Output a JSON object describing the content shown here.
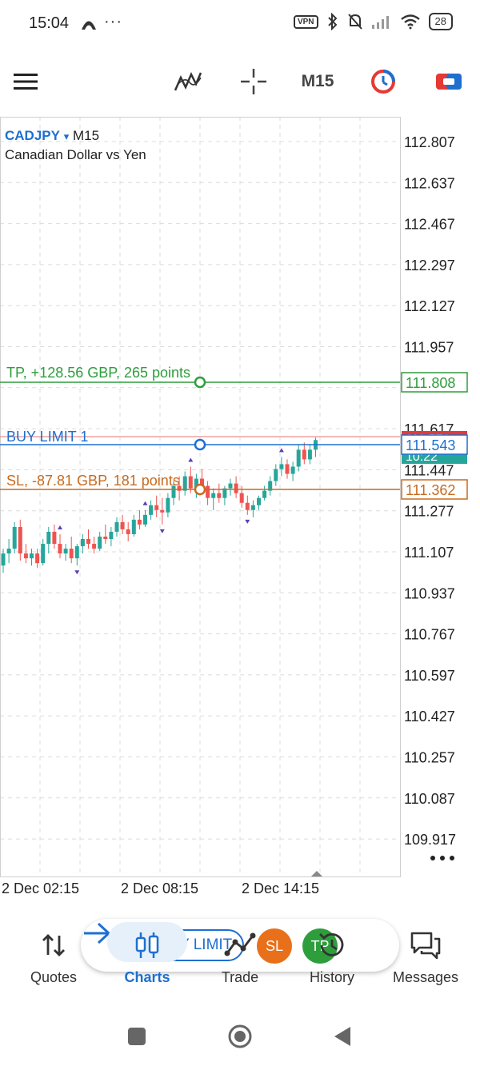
{
  "status_bar": {
    "time": "15:04",
    "dots": "···",
    "vpn": "VPN",
    "battery": "28"
  },
  "toolbar": {
    "menu_icon": "hamburger-icon",
    "indicators_icon": "indicator-icon",
    "crosshair_icon": "crosshair-icon",
    "timeframe": "M15",
    "clock_icon": "one-click-trading-icon",
    "toggle_icon": "toggle-icon"
  },
  "chart": {
    "symbol": "CADJPY",
    "symbol_arrow": "▾",
    "timeframe": "M15",
    "description": "Canadian Dollar vs Yen",
    "price_labels": [
      "112.807",
      "112.637",
      "112.467",
      "112.297",
      "112.127",
      "111.957",
      "111.277",
      "111.107",
      "110.937",
      "110.767",
      "110.597",
      "110.427",
      "110.257",
      "110.087",
      "109.917"
    ],
    "partially_hidden_labels": [
      "111.617",
      "111.447"
    ],
    "time_labels": [
      "2 Dec 02:15",
      "2 Dec 08:15",
      "2 Dec 14:15"
    ],
    "tp_line": {
      "label": "TP, +128.56 GBP, 265 points",
      "price": "111.808",
      "color": "#2e9e3d"
    },
    "order_line": {
      "label": "BUY LIMIT 1",
      "price": "111.543",
      "color": "#1e6fd0"
    },
    "sl_line": {
      "label": "SL, -87.81 GBP, 181 points",
      "price": "111.362",
      "color": "#c86a1e"
    },
    "bid_price_tag": "111.571",
    "countdown_tag": "10:22",
    "more_icon": "more-dots-icon"
  },
  "order_panel": {
    "close": "✕",
    "buy_limit": "BUY LIMIT",
    "sl": "SL",
    "tp": "TP"
  },
  "bottom_nav": {
    "items": [
      {
        "label": "Quotes",
        "icon": "quotes-arrows-icon"
      },
      {
        "label": "Charts",
        "icon": "candles-icon"
      },
      {
        "label": "Trade",
        "icon": "trade-line-icon"
      },
      {
        "label": "History",
        "icon": "history-clock-icon"
      },
      {
        "label": "Messages",
        "icon": "messages-icon"
      }
    ],
    "active": "Charts"
  },
  "colors": {
    "accent": "#1e6fd0",
    "bull": "#26a69a",
    "bear": "#ef5350",
    "tp": "#2e9e3d",
    "sl": "#c86a1e"
  }
}
